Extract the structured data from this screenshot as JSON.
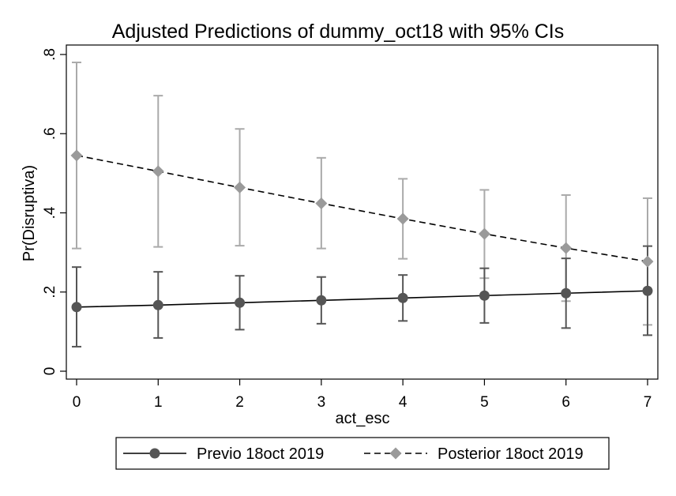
{
  "chart_data": {
    "type": "line",
    "title": "Adjusted Predictions of dummy_oct18 with 95% CIs",
    "xlabel": "act_esc",
    "ylabel": "Pr(Disruptiva)",
    "x": [
      0,
      1,
      2,
      3,
      4,
      5,
      6,
      7
    ],
    "x_tick_labels": [
      "0",
      "1",
      "2",
      "3",
      "4",
      "5",
      "6",
      "7"
    ],
    "y_ticks": [
      0,
      0.2,
      0.4,
      0.6,
      0.8
    ],
    "y_tick_labels": [
      "0",
      ".2",
      ".4",
      ".6",
      ".8"
    ],
    "xlim": [
      0,
      7
    ],
    "ylim": [
      0,
      0.8
    ],
    "grid": false,
    "legend_position": "bottom",
    "series": [
      {
        "name": "Previo 18oct 2019",
        "marker": "circle",
        "line_style": "solid",
        "color": "#555555",
        "line_color": "#000000",
        "values": [
          0.162,
          0.167,
          0.173,
          0.179,
          0.185,
          0.191,
          0.197,
          0.203
        ],
        "ci_low": [
          0.062,
          0.084,
          0.105,
          0.12,
          0.127,
          0.122,
          0.109,
          0.091
        ],
        "ci_high": [
          0.263,
          0.251,
          0.241,
          0.238,
          0.243,
          0.26,
          0.285,
          0.316
        ]
      },
      {
        "name": "Posterior 18oct 2019",
        "marker": "diamond",
        "line_style": "dashed",
        "color": "#9a9a9a",
        "line_color": "#000000",
        "values": [
          0.545,
          0.505,
          0.464,
          0.424,
          0.385,
          0.347,
          0.311,
          0.277
        ],
        "ci_low": [
          0.31,
          0.314,
          0.317,
          0.31,
          0.284,
          0.235,
          0.177,
          0.117
        ],
        "ci_high": [
          0.78,
          0.696,
          0.612,
          0.539,
          0.486,
          0.458,
          0.445,
          0.437
        ]
      }
    ]
  }
}
